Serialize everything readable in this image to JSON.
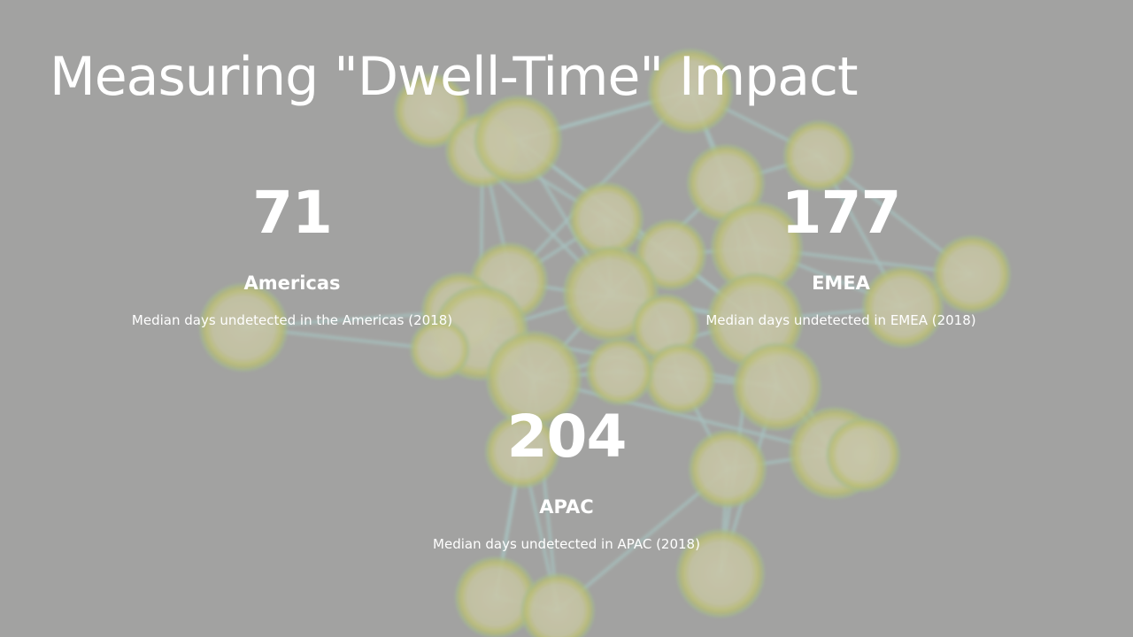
{
  "slide": {
    "title": "Measuring \"Dwell-Time\" Impact"
  },
  "stats": {
    "americas": {
      "value": "71",
      "region": "Americas",
      "description": "Median days undetected in the Americas (2018)"
    },
    "emea": {
      "value": "177",
      "region": "EMEA",
      "description": "Median days undetected in EMEA (2018)"
    },
    "apac": {
      "value": "204",
      "region": "APAC",
      "description": "Median days undetected in APAC (2018)"
    }
  },
  "colors": {
    "background": "#a3a3a1",
    "text": "#ffffff",
    "node_fill": "#d3d1a4",
    "node_ring": "#bfc55a",
    "edge": "#a9ccca"
  }
}
